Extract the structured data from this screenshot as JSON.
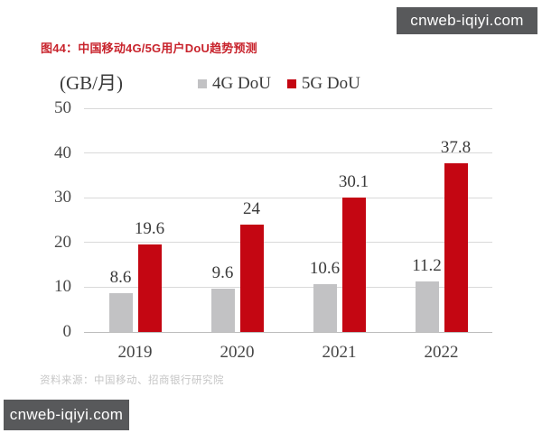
{
  "title": "图44：中国移动4G/5G用户DoU趋势预测",
  "source": "资料来源：中国移动、招商银行研究院",
  "watermarks": {
    "top_right": "cnweb-iqiyi.com",
    "bottom_left": "cnweb-iqiyi.com"
  },
  "colors": {
    "title_red": "#C8232C",
    "bar_red": "#C40612",
    "bar_gray": "#C2C2C4",
    "gridline": "#D9D9D9",
    "baseline": "#BDBDBD",
    "axis_text": "#4A4A4A",
    "source_text": "#C6C6C6",
    "watermark_bg": "#58595B",
    "watermark_text": "#FFFFFF"
  },
  "chart_data": {
    "type": "bar",
    "title": "中国移动4G/5G用户DoU趋势预测",
    "unit_label": "(GB/月)",
    "categories": [
      "2019",
      "2020",
      "2021",
      "2022"
    ],
    "series": [
      {
        "name": "4G DoU",
        "color": "#C2C2C4",
        "values": [
          8.6,
          9.6,
          10.6,
          11.2
        ]
      },
      {
        "name": "5G DoU",
        "color": "#C40612",
        "values": [
          19.6,
          24,
          30.1,
          37.8
        ]
      }
    ],
    "ylabel": "(GB/月)",
    "ylim": [
      0,
      50
    ],
    "yticks": [
      0,
      10,
      20,
      30,
      40,
      50
    ],
    "grid": true,
    "legend_position": "top",
    "value_labels": true
  }
}
